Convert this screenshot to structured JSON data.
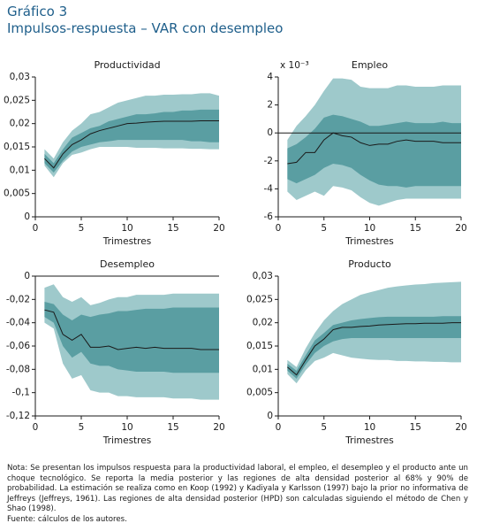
{
  "header": {
    "title": "Gráfico 3",
    "subtitle": "Impulsos-respuesta – VAR con desempleo"
  },
  "note": "Nota: Se presentan los impulsos respuesta para la productividad laboral, el empleo, el desempleo y el producto ante un choque tecnológico. Se reporta la media posterior y las regiones de alta densidad posterior al 68% y 90% de probabilidad. La estimación se realiza como en Koop (1992) y Kadiyala y Karlsson (1997) bajo la prior no informativa de Jeffreys (Jeffreys, 1961). Las regiones de alta densidad posterior (HPD) son calculadas siguiendo el método de Chen y Shao (1998).",
  "source": "Fuente: cálculos de los autores.",
  "chart_data": [
    {
      "type": "band_line",
      "title": "Productividad",
      "x_label": "Trimestres",
      "x": [
        1,
        2,
        3,
        4,
        5,
        6,
        7,
        8,
        9,
        10,
        11,
        12,
        13,
        14,
        15,
        16,
        17,
        18,
        19,
        20
      ],
      "xlim": [
        0,
        20
      ],
      "xticks": [
        0,
        5,
        10,
        15,
        20
      ],
      "ylim": [
        0,
        0.03
      ],
      "yticks": [
        0,
        {
          "value": 0.005,
          "label": "0,005"
        },
        {
          "value": 0.01,
          "label": "0,01"
        },
        {
          "value": 0.015,
          "label": "0,015"
        },
        {
          "value": 0.02,
          "label": "0,02"
        },
        {
          "value": 0.025,
          "label": "0,025"
        },
        {
          "value": 0.03,
          "label": "0,03"
        }
      ],
      "zero_line": false,
      "bands": [
        {
          "color": "#9ec9cb",
          "lower": [
            0.011,
            0.0085,
            0.0115,
            0.0133,
            0.0138,
            0.0145,
            0.015,
            0.015,
            0.015,
            0.015,
            0.0148,
            0.0148,
            0.0148,
            0.0147,
            0.0147,
            0.0147,
            0.0146,
            0.0146,
            0.0145,
            0.0145
          ],
          "upper": [
            0.0145,
            0.0125,
            0.016,
            0.0185,
            0.02,
            0.022,
            0.0225,
            0.0235,
            0.0245,
            0.025,
            0.0255,
            0.026,
            0.026,
            0.0262,
            0.0262,
            0.0263,
            0.0263,
            0.0265,
            0.0265,
            0.026
          ]
        },
        {
          "color": "#5a9ea2",
          "lower": [
            0.0115,
            0.0095,
            0.012,
            0.014,
            0.015,
            0.0155,
            0.016,
            0.0162,
            0.0165,
            0.0165,
            0.0165,
            0.0165,
            0.0165,
            0.0165,
            0.0165,
            0.0165,
            0.0162,
            0.0162,
            0.016,
            0.016
          ],
          "upper": [
            0.0135,
            0.0115,
            0.0145,
            0.017,
            0.018,
            0.019,
            0.0195,
            0.0205,
            0.021,
            0.0215,
            0.022,
            0.022,
            0.0222,
            0.0225,
            0.0225,
            0.0228,
            0.0228,
            0.023,
            0.023,
            0.023
          ]
        }
      ],
      "line": {
        "color": "#1a1a1a",
        "values": [
          0.0125,
          0.0105,
          0.0135,
          0.0155,
          0.0165,
          0.0178,
          0.0185,
          0.019,
          0.0195,
          0.02,
          0.0201,
          0.0203,
          0.0204,
          0.0205,
          0.0205,
          0.0205,
          0.0205,
          0.0206,
          0.0206,
          0.0206
        ]
      }
    },
    {
      "type": "band_line",
      "title": "Empleo",
      "x_label": "Trimestres",
      "axis_multiplier": "x 10⁻³",
      "x": [
        1,
        2,
        3,
        4,
        5,
        6,
        7,
        8,
        9,
        10,
        11,
        12,
        13,
        14,
        15,
        16,
        17,
        18,
        19,
        20
      ],
      "xlim": [
        0,
        20
      ],
      "xticks": [
        0,
        5,
        10,
        15,
        20
      ],
      "ylim": [
        -6,
        4
      ],
      "yticks": [
        -6,
        -4,
        -2,
        0,
        2,
        4
      ],
      "zero_line": true,
      "bands": [
        {
          "color": "#9ec9cb",
          "lower": [
            -4.2,
            -4.8,
            -4.5,
            -4.2,
            -4.5,
            -3.8,
            -3.9,
            -4.1,
            -4.6,
            -5.0,
            -5.2,
            -5.0,
            -4.8,
            -4.7,
            -4.7,
            -4.7,
            -4.7,
            -4.7,
            -4.7,
            -4.7
          ],
          "upper": [
            -0.5,
            0.5,
            1.2,
            2.0,
            3.0,
            3.9,
            3.9,
            3.8,
            3.3,
            3.2,
            3.2,
            3.2,
            3.4,
            3.4,
            3.3,
            3.3,
            3.3,
            3.4,
            3.4,
            3.4
          ]
        },
        {
          "color": "#5a9ea2",
          "lower": [
            -3.3,
            -3.6,
            -3.3,
            -3,
            -2.5,
            -2.2,
            -2.3,
            -2.5,
            -3,
            -3.4,
            -3.7,
            -3.8,
            -3.8,
            -3.9,
            -3.8,
            -3.8,
            -3.8,
            -3.8,
            -3.8,
            -3.8
          ],
          "upper": [
            -1.1,
            -0.8,
            -0.3,
            0.3,
            1.1,
            1.3,
            1.2,
            1.0,
            0.8,
            0.5,
            0.5,
            0.6,
            0.7,
            0.8,
            0.7,
            0.7,
            0.7,
            0.8,
            0.7,
            0.7
          ]
        }
      ],
      "line": {
        "color": "#1a1a1a",
        "values": [
          -2.2,
          -2.1,
          -1.4,
          -1.4,
          -0.5,
          0,
          -0.2,
          -0.3,
          -0.7,
          -0.9,
          -0.8,
          -0.8,
          -0.6,
          -0.5,
          -0.6,
          -0.6,
          -0.6,
          -0.7,
          -0.7,
          -0.7
        ]
      }
    },
    {
      "type": "band_line",
      "title": "Desempleo",
      "x_label": "Trimestres",
      "x": [
        1,
        2,
        3,
        4,
        5,
        6,
        7,
        8,
        9,
        10,
        11,
        12,
        13,
        14,
        15,
        16,
        17,
        18,
        19,
        20
      ],
      "xlim": [
        0,
        20
      ],
      "xticks": [
        0,
        5,
        10,
        15,
        20
      ],
      "ylim": [
        -0.12,
        0
      ],
      "yticks": [
        {
          "value": -0.12,
          "label": "-0,12"
        },
        {
          "value": -0.1,
          "label": "-0,1"
        },
        {
          "value": -0.08,
          "label": "-0,08"
        },
        {
          "value": -0.06,
          "label": "-0,06"
        },
        {
          "value": -0.04,
          "label": "-0,04"
        },
        {
          "value": -0.02,
          "label": "-0,02"
        },
        0
      ],
      "zero_line": true,
      "bands": [
        {
          "color": "#9ec9cb",
          "lower": [
            -0.04,
            -0.045,
            -0.075,
            -0.088,
            -0.085,
            -0.098,
            -0.1,
            -0.1,
            -0.103,
            -0.103,
            -0.104,
            -0.104,
            -0.104,
            -0.104,
            -0.105,
            -0.105,
            -0.105,
            -0.106,
            -0.106,
            -0.106
          ],
          "upper": [
            -0.01,
            -0.007,
            -0.018,
            -0.022,
            -0.018,
            -0.025,
            -0.023,
            -0.02,
            -0.018,
            -0.018,
            -0.016,
            -0.016,
            -0.016,
            -0.016,
            -0.015,
            -0.015,
            -0.015,
            -0.015,
            -0.015,
            -0.015
          ]
        },
        {
          "color": "#5a9ea2",
          "lower": [
            -0.035,
            -0.04,
            -0.06,
            -0.07,
            -0.065,
            -0.075,
            -0.077,
            -0.077,
            -0.08,
            -0.081,
            -0.082,
            -0.082,
            -0.082,
            -0.082,
            -0.083,
            -0.083,
            -0.083,
            -0.083,
            -0.083,
            -0.083
          ],
          "upper": [
            -0.022,
            -0.024,
            -0.033,
            -0.038,
            -0.033,
            -0.035,
            -0.033,
            -0.032,
            -0.03,
            -0.03,
            -0.029,
            -0.028,
            -0.028,
            -0.028,
            -0.027,
            -0.027,
            -0.027,
            -0.027,
            -0.027,
            -0.027
          ]
        }
      ],
      "line": {
        "color": "#1a1a1a",
        "values": [
          -0.029,
          -0.031,
          -0.05,
          -0.055,
          -0.05,
          -0.061,
          -0.061,
          -0.06,
          -0.063,
          -0.062,
          -0.061,
          -0.062,
          -0.061,
          -0.062,
          -0.062,
          -0.062,
          -0.062,
          -0.063,
          -0.063,
          -0.063
        ]
      }
    },
    {
      "type": "band_line",
      "title": "Producto",
      "x_label": "Trimestres",
      "x": [
        1,
        2,
        3,
        4,
        5,
        6,
        7,
        8,
        9,
        10,
        11,
        12,
        13,
        14,
        15,
        16,
        17,
        18,
        19,
        20
      ],
      "xlim": [
        0,
        20
      ],
      "xticks": [
        0,
        5,
        10,
        15,
        20
      ],
      "ylim": [
        0,
        0.03
      ],
      "yticks": [
        0,
        {
          "value": 0.005,
          "label": "0,005"
        },
        {
          "value": 0.01,
          "label": "0,01"
        },
        {
          "value": 0.015,
          "label": "0,015"
        },
        {
          "value": 0.02,
          "label": "0,02"
        },
        {
          "value": 0.025,
          "label": "0,025"
        },
        {
          "value": 0.03,
          "label": "0,03"
        }
      ],
      "zero_line": false,
      "bands": [
        {
          "color": "#9ec9cb",
          "lower": [
            0.009,
            0.007,
            0.0098,
            0.0118,
            0.0125,
            0.0135,
            0.013,
            0.0125,
            0.0123,
            0.0121,
            0.012,
            0.012,
            0.0118,
            0.0118,
            0.0117,
            0.0117,
            0.0116,
            0.0116,
            0.0115,
            0.0115
          ],
          "upper": [
            0.012,
            0.0105,
            0.0145,
            0.0178,
            0.0205,
            0.0225,
            0.024,
            0.025,
            0.026,
            0.0265,
            0.027,
            0.0275,
            0.0278,
            0.028,
            0.0282,
            0.0283,
            0.0285,
            0.0286,
            0.0287,
            0.0288
          ]
        },
        {
          "color": "#5a9ea2",
          "lower": [
            0.0097,
            0.008,
            0.011,
            0.0135,
            0.015,
            0.016,
            0.0165,
            0.0167,
            0.0167,
            0.0167,
            0.0167,
            0.0167,
            0.0167,
            0.0167,
            0.0167,
            0.0167,
            0.0167,
            0.0167,
            0.0167,
            0.0167
          ],
          "upper": [
            0.0112,
            0.0097,
            0.013,
            0.0162,
            0.0178,
            0.0195,
            0.02,
            0.0205,
            0.0208,
            0.021,
            0.0212,
            0.0213,
            0.0213,
            0.0213,
            0.0213,
            0.0213,
            0.0213,
            0.0214,
            0.0214,
            0.0214
          ]
        }
      ],
      "line": {
        "color": "#1a1a1a",
        "values": [
          0.0105,
          0.0088,
          0.012,
          0.015,
          0.0165,
          0.0185,
          0.019,
          0.019,
          0.0192,
          0.0193,
          0.0195,
          0.0196,
          0.0197,
          0.0198,
          0.0198,
          0.0199,
          0.0199,
          0.0199,
          0.02,
          0.02
        ]
      }
    }
  ]
}
